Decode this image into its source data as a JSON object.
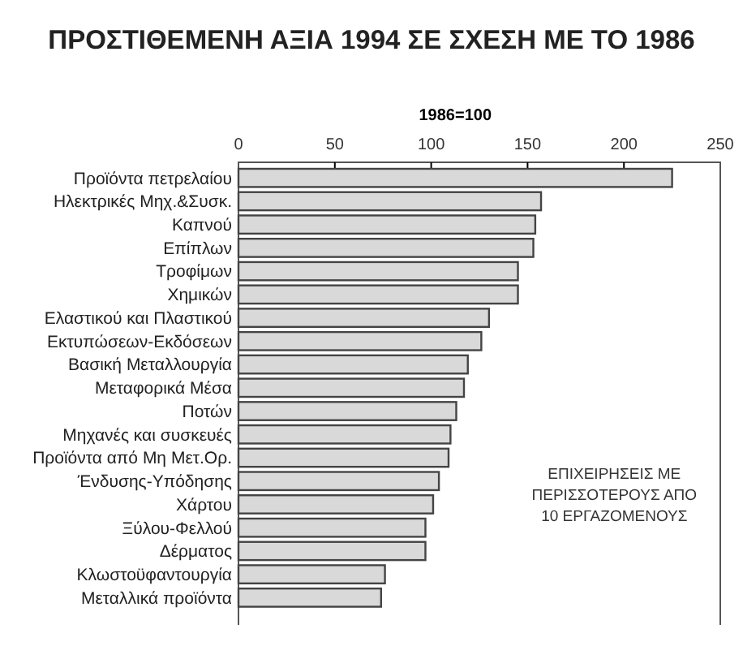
{
  "chart_data": {
    "type": "bar",
    "orientation": "horizontal",
    "title": "ΠΡΟΣΤΙΘΕΜΕΝΗ ΑΞΙΑ 1994 ΣΕ ΣΧΕΣΗ ΜΕ ΤΟ 1986",
    "xlabel": "1986=100",
    "categories": [
      "Προϊόντα πετρελαίου",
      "Ηλεκτρικές Μηχ.&Συσκ.",
      "Καπνού",
      "Επίπλων",
      "Τροφίμων",
      "Χημικών",
      "Ελαστικού και Πλαστικού",
      "Εκτυπώσεων-Εκδόσεων",
      "Βασική Μεταλλουργία",
      "Μεταφορικά Μέσα",
      "Ποτών",
      "Μηχανές και συσκευές",
      "Προϊόντα από Μη Μετ.Ορ.",
      "Ένδυσης-Υπόδησης",
      "Χάρτου",
      "Ξύλου-Φελλού",
      "Δέρματος",
      "Κλωστοϋφαντουργία",
      "Μεταλλικά προϊόντα"
    ],
    "values": [
      225,
      157,
      154,
      153,
      145,
      145,
      130,
      126,
      119,
      117,
      113,
      110,
      109,
      104,
      101,
      97,
      97,
      76,
      74
    ],
    "color": "#d9d9d9",
    "xlim": [
      0,
      250
    ],
    "xticks": [
      0,
      50,
      100,
      150,
      200,
      250
    ],
    "grid": false,
    "annotations": [
      "ΕΠΙΧΕΙΡΗΣΕΙΣ ΜΕ\nΠΕΡΙΣΣΟΤΕΡΟΥΣ ΑΠΟ\n10 ΕΡΓΑΖΟΜΕΝΟΥΣ"
    ]
  }
}
